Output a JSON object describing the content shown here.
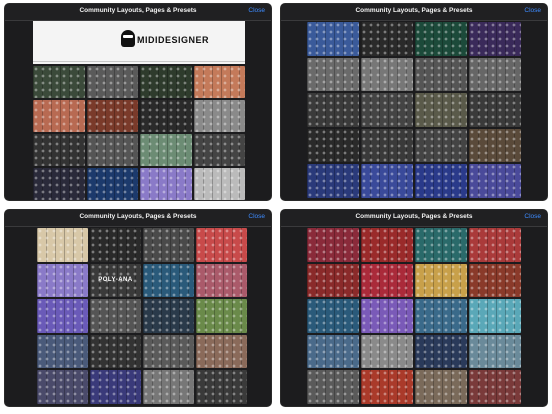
{
  "screens": [
    {
      "title": "Community Layouts, Pages & Presets",
      "close_label": "Close",
      "logo_text": "MIDIDESIGNER",
      "columns": 4,
      "rows": 4,
      "tiles": [
        "#3b4a3a",
        "#5a5a5a",
        "#2e3b2c",
        "#c47a5a",
        "#b86a52",
        "#7a3a2a",
        "#2a2a2a",
        "#8a8a8a",
        "#333333",
        "#555555",
        "#6c8c74",
        "#444444",
        "#2a2a3a",
        "#1c3a6c",
        "#8a7ac8",
        "#bbbbbb"
      ]
    },
    {
      "title": "Community Layouts, Pages & Presets",
      "close_label": "Close",
      "columns": 4,
      "rows": 5,
      "tiles": [
        "#3a5a9a",
        "#2a2a2a",
        "#1c4a3a",
        "#3a2a5a",
        "#6a6a6a",
        "#777777",
        "#555555",
        "#666666",
        "#3a3a3a",
        "#444444",
        "#5a5a4a",
        "#3a3a3a",
        "#2a2a2a",
        "#3a3a3a",
        "#444444",
        "#5a4a3a",
        "#2a3a7a",
        "#3a4a9a",
        "#2a3a8a",
        "#4a4a9a"
      ]
    },
    {
      "title": "Community Layouts, Pages & Presets",
      "close_label": "Close",
      "columns": 4,
      "rows": 5,
      "tiles": [
        "#d8c8a8",
        "#2a2a2a",
        "#4a4a4a",
        "#c84a4a",
        "#8a7ac8",
        "#3a3a3a",
        "#2a5a7a",
        "#aa5a6a",
        "#6a5ab8",
        "#555555",
        "#2a3a4a",
        "#6a8a4a",
        "#4a5a7a",
        "#333333",
        "#5a5a5a",
        "#8a6a5a",
        "#4a4a6a",
        "#3a3a7a",
        "#777777",
        "#3a3a3a"
      ],
      "tile_labels": {
        "5": "POLY-ANA"
      }
    },
    {
      "title": "Community Layouts, Pages & Presets",
      "close_label": "Close",
      "columns": 4,
      "rows": 5,
      "tiles": [
        "#8a2a3a",
        "#9a2a2a",
        "#2a6a6a",
        "#aa3a3a",
        "#8a2a2a",
        "#aa2a3a",
        "#c8a04a",
        "#8a3a2a",
        "#2a5a7a",
        "#7a5ab8",
        "#3a6a8a",
        "#5aa8b8",
        "#4a6a8a",
        "#8a8a8a",
        "#2a3a5a",
        "#6a8a9a",
        "#5a5a5a",
        "#aa3a2a",
        "#7a6a5a",
        "#7a3a3a"
      ]
    }
  ]
}
